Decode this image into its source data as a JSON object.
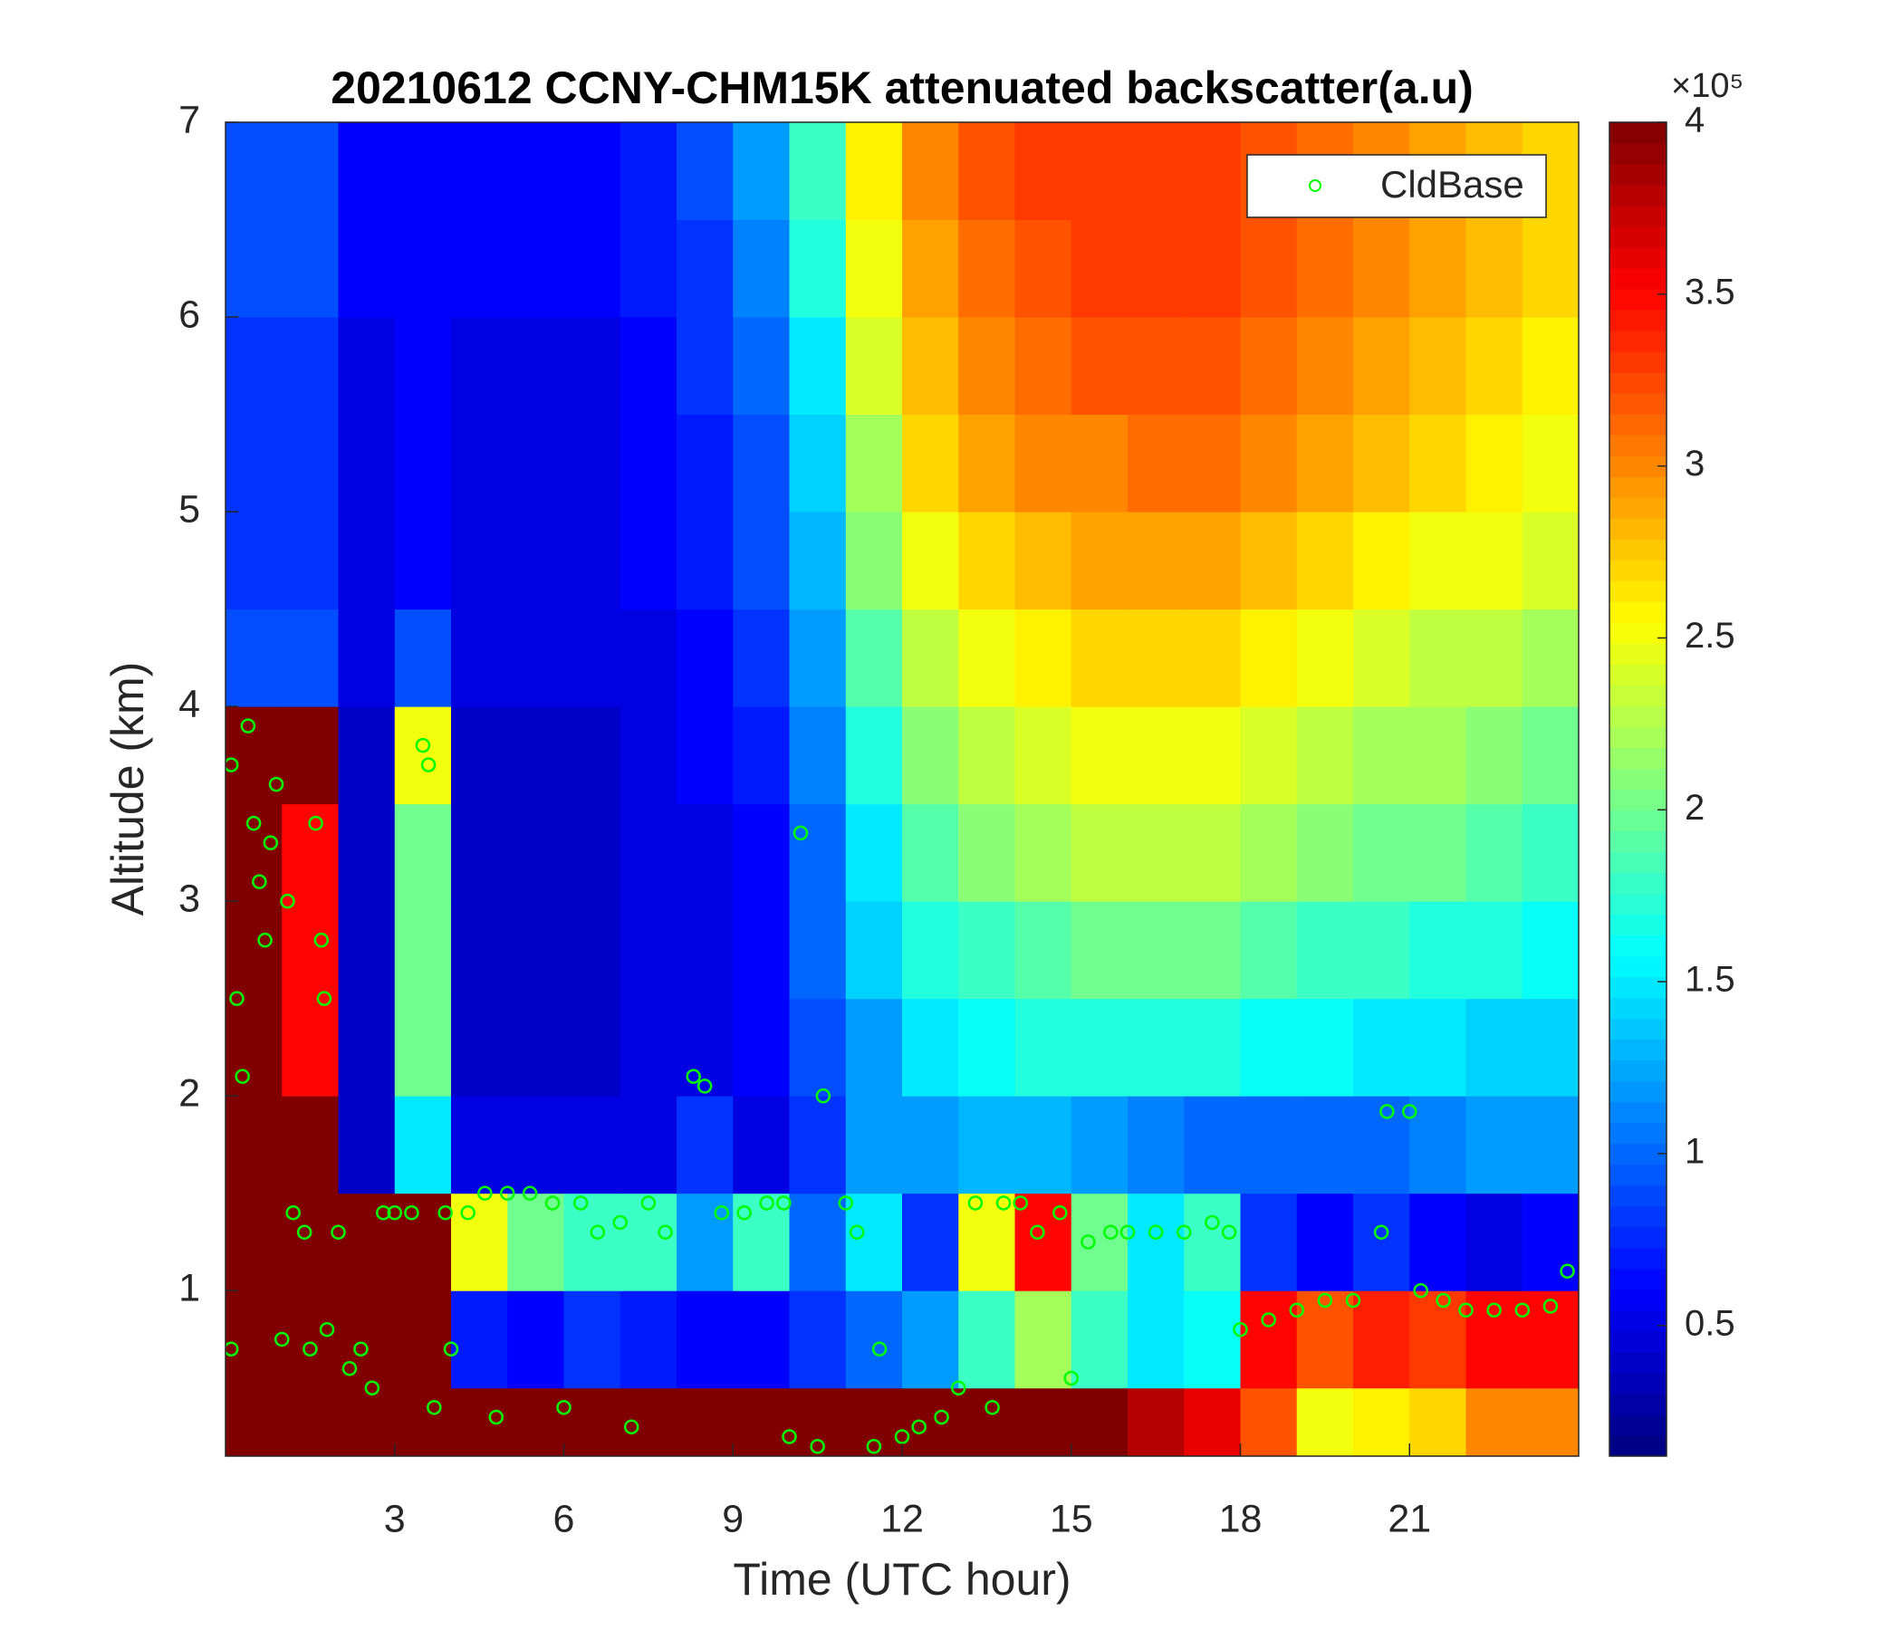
{
  "chart_data": {
    "type": "heatmap",
    "title": "20210612 CCNY-CHM15K attenuated backscatter(a.u)",
    "xlabel": "Time (UTC hour)",
    "ylabel": "Altitude (km)",
    "xlim": [
      0,
      24
    ],
    "ylim": [
      0.15,
      7
    ],
    "xticks": [
      3,
      6,
      9,
      12,
      15,
      18,
      21
    ],
    "yticks": [
      1,
      2,
      3,
      4,
      5,
      6,
      7
    ],
    "x_edges": [
      0,
      1,
      2,
      3,
      4,
      5,
      6,
      7,
      8,
      9,
      10,
      11,
      12,
      13,
      14,
      15,
      16,
      17,
      18,
      19,
      20,
      21,
      22,
      23,
      24
    ],
    "y_edges": [
      0.15,
      0.5,
      1,
      1.5,
      2,
      2.5,
      3,
      3.5,
      4,
      4.5,
      5,
      5.5,
      6,
      6.5,
      7
    ],
    "colormap": "jet",
    "clim": [
      0.12,
      4
    ],
    "cbar_ticks": [
      0.5,
      1,
      1.5,
      2,
      2.5,
      3,
      3.5,
      4
    ],
    "cbar_exponent": "×10⁵",
    "z": [
      [
        4,
        4,
        4,
        4,
        4,
        4,
        4,
        4,
        4,
        4,
        4,
        4,
        4,
        4,
        4,
        4,
        3.8,
        3.6,
        3.2,
        2.5,
        2.6,
        2.7,
        3,
        3
      ],
      [
        4,
        4,
        4,
        4,
        0.7,
        0.6,
        0.8,
        0.7,
        0.6,
        0.6,
        0.8,
        1,
        1.2,
        1.8,
        2.2,
        1.8,
        1.5,
        1.6,
        3.5,
        3.2,
        3.4,
        3.3,
        3.5,
        3.5
      ],
      [
        4,
        4,
        4,
        4,
        2.5,
        2,
        1.8,
        1.8,
        1.2,
        1.8,
        1,
        1.5,
        0.8,
        2.5,
        3.5,
        2,
        1.5,
        1.8,
        0.8,
        0.6,
        0.8,
        0.6,
        0.5,
        0.6
      ],
      [
        4,
        4,
        0.4,
        1.5,
        0.5,
        0.5,
        0.5,
        0.5,
        0.8,
        0.5,
        0.8,
        1.2,
        1.2,
        1.3,
        1.3,
        1.2,
        1.1,
        1,
        1,
        1,
        1,
        1.1,
        1.2,
        1.2
      ],
      [
        4,
        3.5,
        0.4,
        2,
        0.4,
        0.4,
        0.4,
        0.5,
        0.5,
        0.6,
        0.9,
        1.2,
        1.5,
        1.6,
        1.7,
        1.7,
        1.7,
        1.7,
        1.6,
        1.6,
        1.5,
        1.5,
        1.4,
        1.4
      ],
      [
        4,
        3.5,
        0.4,
        2,
        0.4,
        0.4,
        0.4,
        0.5,
        0.5,
        0.6,
        1,
        1.4,
        1.7,
        1.8,
        1.9,
        2,
        2,
        2,
        1.9,
        1.8,
        1.8,
        1.7,
        1.7,
        1.6
      ],
      [
        4,
        3.5,
        0.4,
        2,
        0.4,
        0.4,
        0.4,
        0.5,
        0.5,
        0.6,
        1,
        1.5,
        1.9,
        2.1,
        2.2,
        2.3,
        2.3,
        2.3,
        2.2,
        2.1,
        2,
        2,
        1.9,
        1.8
      ],
      [
        4,
        4,
        0.4,
        2.5,
        0.4,
        0.4,
        0.4,
        0.5,
        0.6,
        0.7,
        1.1,
        1.7,
        2.1,
        2.3,
        2.4,
        2.5,
        2.5,
        2.5,
        2.4,
        2.3,
        2.2,
        2.2,
        2.1,
        2
      ],
      [
        0.9,
        0.9,
        0.5,
        0.9,
        0.5,
        0.5,
        0.5,
        0.5,
        0.6,
        0.8,
        1.2,
        1.9,
        2.3,
        2.5,
        2.6,
        2.7,
        2.7,
        2.7,
        2.6,
        2.5,
        2.4,
        2.3,
        2.3,
        2.2
      ],
      [
        0.8,
        0.8,
        0.5,
        0.6,
        0.5,
        0.5,
        0.5,
        0.6,
        0.7,
        0.9,
        1.3,
        2.1,
        2.5,
        2.7,
        2.8,
        2.9,
        2.9,
        2.9,
        2.8,
        2.7,
        2.6,
        2.5,
        2.5,
        2.4
      ],
      [
        0.8,
        0.8,
        0.5,
        0.6,
        0.5,
        0.5,
        0.5,
        0.6,
        0.7,
        0.9,
        1.4,
        2.2,
        2.7,
        2.9,
        3,
        3,
        3.1,
        3.1,
        3,
        2.9,
        2.8,
        2.7,
        2.6,
        2.5
      ],
      [
        0.8,
        0.8,
        0.5,
        0.6,
        0.5,
        0.5,
        0.5,
        0.6,
        0.8,
        1,
        1.5,
        2.4,
        2.8,
        3,
        3.1,
        3.2,
        3.2,
        3.2,
        3.1,
        3,
        2.9,
        2.8,
        2.7,
        2.6
      ],
      [
        0.9,
        0.9,
        0.6,
        0.6,
        0.6,
        0.6,
        0.6,
        0.7,
        0.8,
        1.1,
        1.7,
        2.5,
        2.9,
        3.1,
        3.2,
        3.3,
        3.3,
        3.3,
        3.2,
        3.1,
        3,
        2.9,
        2.8,
        2.7
      ],
      [
        0.9,
        0.9,
        0.6,
        0.6,
        0.6,
        0.6,
        0.6,
        0.7,
        0.9,
        1.2,
        1.8,
        2.6,
        3,
        3.2,
        3.3,
        3.3,
        3.3,
        3.3,
        3.2,
        3.1,
        3,
        2.9,
        2.8,
        2.7
      ]
    ],
    "legend": "upper right",
    "series": [
      {
        "name": "CldBase",
        "type": "scatter",
        "color": "#00ff00",
        "x": [
          0.1,
          0.1,
          0.2,
          0.3,
          0.4,
          0.5,
          0.6,
          0.7,
          0.8,
          0.9,
          1.0,
          1.1,
          1.2,
          1.4,
          1.5,
          1.6,
          1.7,
          1.75,
          1.8,
          2.0,
          2.2,
          2.4,
          2.6,
          2.8,
          3.0,
          3.3,
          3.5,
          3.6,
          3.7,
          3.9,
          4.0,
          4.3,
          4.6,
          4.8,
          5.0,
          5.4,
          5.8,
          6.0,
          6.3,
          6.6,
          7.0,
          7.2,
          7.5,
          7.8,
          8.3,
          8.5,
          8.8,
          9.2,
          9.6,
          9.9,
          10.0,
          10.2,
          10.6,
          10.5,
          11.0,
          11.2,
          11.5,
          11.6,
          12.0,
          12.3,
          12.7,
          13.0,
          13.3,
          13.6,
          13.8,
          14.1,
          14.4,
          14.8,
          15.0,
          15.3,
          15.7,
          16.0,
          16.5,
          17.0,
          17.5,
          17.8,
          18.0,
          18.5,
          19.0,
          19.5,
          20.0,
          20.5,
          20.6,
          21.0,
          21.2,
          21.6,
          22.0,
          22.5,
          23.0,
          23.5,
          23.8
        ],
        "y": [
          3.7,
          0.7,
          2.5,
          2.1,
          3.9,
          3.4,
          3.1,
          2.8,
          3.3,
          3.6,
          0.75,
          3.0,
          1.4,
          1.3,
          0.7,
          3.4,
          2.8,
          2.5,
          0.8,
          1.3,
          0.6,
          0.7,
          0.5,
          1.4,
          1.4,
          1.4,
          3.8,
          3.7,
          0.4,
          1.4,
          0.7,
          1.4,
          1.5,
          0.35,
          1.5,
          1.5,
          1.45,
          0.4,
          1.45,
          1.3,
          1.35,
          0.3,
          1.45,
          1.3,
          2.1,
          2.05,
          1.4,
          1.4,
          1.45,
          1.45,
          0.25,
          3.35,
          2.0,
          0.2,
          1.45,
          1.3,
          0.2,
          0.7,
          0.25,
          0.3,
          0.35,
          0.5,
          1.45,
          0.4,
          1.45,
          1.45,
          1.3,
          1.4,
          0.55,
          1.25,
          1.3,
          1.3,
          1.3,
          1.3,
          1.35,
          1.3,
          0.8,
          0.85,
          0.9,
          0.95,
          0.95,
          1.3,
          1.92,
          1.92,
          1.0,
          0.95,
          0.9,
          0.9,
          0.9,
          0.92,
          1.1
        ]
      }
    ]
  }
}
